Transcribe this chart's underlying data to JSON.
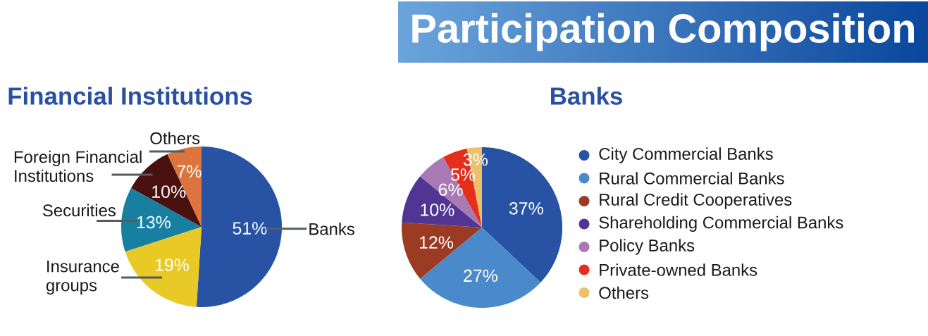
{
  "chart_data": [
    {
      "type": "pie",
      "title": "Financial Institutions",
      "categories": [
        "Banks",
        "Insurance groups",
        "Securities",
        "Foreign Financial Institutions",
        "Others"
      ],
      "values": [
        51,
        19,
        13,
        10,
        7
      ],
      "colors": [
        "#2853a4",
        "#e9c926",
        "#177fa0",
        "#4a0f0f",
        "#db753d"
      ],
      "value_labels": [
        "51%",
        "19%",
        "13%",
        "10%",
        "7%"
      ]
    },
    {
      "type": "pie",
      "title": "Banks",
      "categories": [
        "City Commercial Banks",
        "Rural Commercial Banks",
        "Rural Credit Cooperatives",
        "Shareholding Commercial Banks",
        "Policy Banks",
        "Private-owned Banks",
        "Others"
      ],
      "values": [
        37,
        27,
        12,
        10,
        6,
        5,
        3
      ],
      "colors": [
        "#2853a4",
        "#4a8acb",
        "#9b3b23",
        "#503593",
        "#a879b3",
        "#e62e1c",
        "#edc06c"
      ],
      "value_labels": [
        "37%",
        "27%",
        "12%",
        "10%",
        "6%",
        "5%",
        "3%"
      ],
      "legend": "right",
      "annotations": [
        "Participation Composition"
      ]
    }
  ]
}
